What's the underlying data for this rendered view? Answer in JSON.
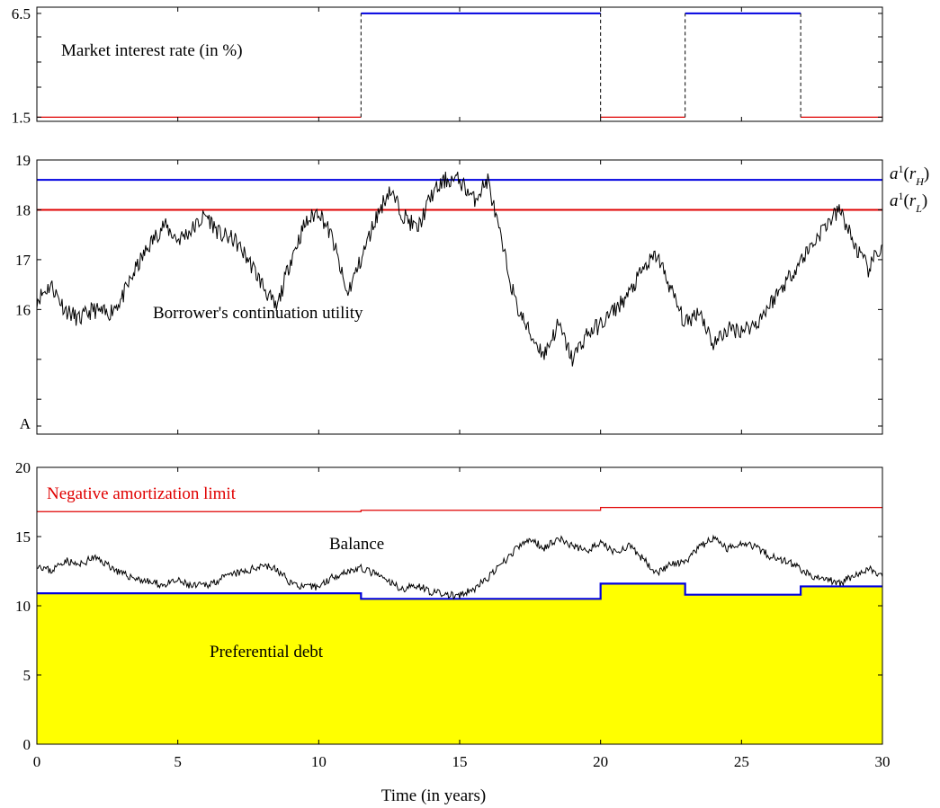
{
  "chart_data": [
    {
      "type": "line",
      "panel": "interest",
      "annotation": "Market interest rate (in %)",
      "xlim": [
        0,
        30
      ],
      "ylim": [
        1.3,
        6.8
      ],
      "yticks": [
        1.5,
        6.5
      ],
      "ytick_labels": [
        "1.5",
        "6.5"
      ],
      "regimes": [
        {
          "start": 0,
          "end": 11.5,
          "rate": 1.5,
          "color": "#e00000"
        },
        {
          "start": 11.5,
          "end": 20,
          "rate": 6.5,
          "color": "#0000e0"
        },
        {
          "start": 20,
          "end": 23,
          "rate": 1.5,
          "color": "#e00000"
        },
        {
          "start": 23,
          "end": 27.1,
          "rate": 6.5,
          "color": "#0000e0"
        },
        {
          "start": 27.1,
          "end": 30,
          "rate": 1.5,
          "color": "#e00000"
        }
      ]
    },
    {
      "type": "line",
      "panel": "utility",
      "annotation": "Borrower's continuation utility",
      "xlim": [
        0,
        30
      ],
      "ylim": [
        13.5,
        19
      ],
      "yticks": [
        19,
        18,
        17,
        16
      ],
      "ytick_labels": [
        "19",
        "18",
        "17",
        "16"
      ],
      "bottom_label": "A",
      "hlines": [
        {
          "name": "a1(rH)",
          "value": 18.6,
          "color": "#0000e0"
        },
        {
          "name": "a1(rL)",
          "value": 18.0,
          "color": "#e00000"
        }
      ],
      "series": [
        {
          "color": "#000000",
          "x": [
            0,
            0.5,
            1,
            1.5,
            2,
            2.5,
            3,
            3.5,
            4,
            4.5,
            5,
            5.5,
            6,
            6.5,
            7,
            7.5,
            8,
            8.5,
            9,
            9.5,
            10,
            10.5,
            11,
            11.5,
            12,
            12.5,
            13,
            13.5,
            14,
            14.5,
            15,
            15.5,
            16,
            16.5,
            17,
            17.5,
            18,
            18.5,
            19,
            19.5,
            20,
            20.5,
            21,
            21.5,
            22,
            22.5,
            23,
            23.5,
            24,
            24.5,
            25,
            25.5,
            26,
            26.5,
            27,
            27.5,
            28,
            28.5,
            29,
            29.5,
            30
          ],
          "values": [
            16.2,
            16.5,
            16.0,
            15.8,
            16.0,
            15.9,
            16.2,
            16.8,
            17.3,
            17.7,
            17.4,
            17.6,
            17.9,
            17.5,
            17.4,
            17.0,
            16.5,
            16.0,
            17.0,
            17.7,
            18.0,
            17.4,
            16.3,
            17.0,
            17.8,
            18.4,
            17.9,
            17.6,
            18.3,
            18.6,
            18.6,
            18.2,
            18.6,
            17.3,
            16.1,
            15.5,
            15.1,
            15.7,
            15.0,
            15.5,
            15.7,
            16.0,
            16.3,
            16.8,
            17.1,
            16.4,
            15.7,
            16.0,
            15.3,
            15.6,
            15.6,
            15.7,
            16.1,
            16.5,
            16.9,
            17.3,
            17.7,
            18.0,
            17.3,
            16.8,
            17.3
          ]
        }
      ]
    },
    {
      "type": "area",
      "panel": "balance",
      "xlim": [
        0,
        30
      ],
      "ylim": [
        0,
        20
      ],
      "yticks": [
        20,
        15,
        10,
        5,
        0
      ],
      "ytick_labels": [
        "20",
        "15",
        "10",
        "5",
        "0"
      ],
      "xticks": [
        0,
        5,
        10,
        15,
        20,
        25,
        30
      ],
      "xtick_labels": [
        "0",
        "5",
        "10",
        "15",
        "20",
        "25",
        "30"
      ],
      "xlabel": "Time (in years)",
      "limit": {
        "name": "Negative amortization limit",
        "color": "#e00000",
        "x": [
          0,
          11.5,
          20,
          27.1,
          30
        ],
        "values": [
          16.8,
          16.9,
          17.1,
          17.1,
          17.1
        ]
      },
      "balance": {
        "name": "Balance",
        "color": "#000000",
        "x": [
          0,
          0.5,
          1,
          1.5,
          2,
          2.5,
          3,
          3.5,
          4,
          4.5,
          5,
          5.5,
          6,
          6.5,
          7,
          7.5,
          8,
          8.5,
          9,
          9.5,
          10,
          10.5,
          11,
          11.5,
          12,
          12.5,
          13,
          13.5,
          14,
          14.5,
          15,
          15.5,
          16,
          16.5,
          17,
          17.5,
          18,
          18.5,
          19,
          19.5,
          20,
          20.5,
          21,
          21.5,
          22,
          22.5,
          23,
          23.5,
          24,
          24.5,
          25,
          25.5,
          26,
          26.5,
          27,
          27.5,
          28,
          28.5,
          29,
          29.5,
          30
        ],
        "values": [
          13.0,
          12.5,
          13.3,
          12.9,
          13.5,
          13.0,
          12.3,
          12.0,
          11.7,
          11.5,
          11.8,
          11.4,
          11.5,
          11.9,
          12.3,
          12.5,
          13.0,
          12.6,
          11.7,
          11.3,
          11.4,
          12.1,
          12.5,
          12.7,
          12.3,
          11.7,
          11.2,
          11.5,
          11.0,
          10.8,
          10.7,
          11.2,
          12.0,
          13.0,
          14.1,
          14.8,
          14.2,
          14.9,
          14.3,
          14.0,
          14.5,
          13.9,
          14.3,
          13.4,
          12.4,
          13.0,
          13.1,
          14.2,
          14.9,
          14.1,
          14.6,
          14.3,
          13.6,
          13.3,
          12.8,
          12.1,
          11.9,
          11.6,
          12.2,
          12.7,
          12.1
        ]
      },
      "preferential_debt": {
        "name": "Preferential debt",
        "line_color": "#0000e0",
        "fill_color": "#ffff00",
        "steps": [
          {
            "start": 0,
            "end": 11.5,
            "value": 10.9
          },
          {
            "start": 11.5,
            "end": 20,
            "value": 10.5
          },
          {
            "start": 20,
            "end": 23,
            "value": 11.6
          },
          {
            "start": 23,
            "end": 27.1,
            "value": 10.8
          },
          {
            "start": 27.1,
            "end": 30,
            "value": 11.4
          }
        ]
      }
    }
  ]
}
